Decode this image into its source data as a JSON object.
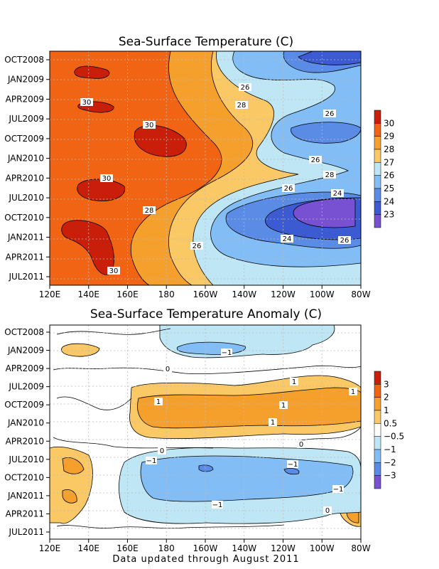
{
  "footer": "Data updated through August 2011",
  "colors": {
    "frame": "#000000",
    "grid": "#bbbbbb"
  },
  "chart_data": [
    {
      "type": "heatmap",
      "title": "Sea-Surface Temperature (C)",
      "x_ticks": [
        "120E",
        "140E",
        "160E",
        "180",
        "160W",
        "140W",
        "120W",
        "100W",
        "80W"
      ],
      "y_ticks": [
        "OCT2008",
        "JAN2009",
        "APR2009",
        "JUL2009",
        "OCT2009",
        "JAN2010",
        "APR2010",
        "JUL2010",
        "OCT2010",
        "JAN2011",
        "APR2011",
        "JUL2011"
      ],
      "colorbar": {
        "labels": [
          "30",
          "29",
          "28",
          "27",
          "26",
          "25",
          "24",
          "23"
        ],
        "colors": [
          "#c81e0a",
          "#f06414",
          "#f5a02d",
          "#fac864",
          "#bfe6f5",
          "#82bef5",
          "#5a8ce6",
          "#3c5ad2",
          "#7850d2"
        ]
      },
      "contour_labels": [
        "30",
        "30",
        "30",
        "30",
        "30",
        "28",
        "28",
        "28",
        "26",
        "26",
        "26",
        "26",
        "26",
        "26",
        "26",
        "24",
        "24"
      ]
    },
    {
      "type": "heatmap",
      "title": "Sea-Surface Temperature Anomaly (C)",
      "x_ticks": [
        "120E",
        "140E",
        "160E",
        "180",
        "160W",
        "140W",
        "120W",
        "100W",
        "80W"
      ],
      "y_ticks": [
        "OCT2008",
        "JAN2009",
        "APR2009",
        "JUL2009",
        "OCT2009",
        "JAN2010",
        "APR2010",
        "JUL2010",
        "OCT2010",
        "JAN2011",
        "APR2011",
        "JUL2011"
      ],
      "colorbar": {
        "labels": [
          "3",
          "2",
          "1",
          "0.5",
          "−0.5",
          "−1",
          "−2",
          "−3"
        ],
        "colors": [
          "#c81e0a",
          "#f06414",
          "#f5a02d",
          "#fac864",
          "#ffffff",
          "#bfe6f5",
          "#82bef5",
          "#5a8ce6",
          "#7850d2"
        ]
      },
      "contour_labels": [
        "−1",
        "0",
        "1",
        "1",
        "1",
        "1",
        "1",
        "0",
        "0",
        "−1",
        "−1",
        "−1",
        "−1",
        "0"
      ]
    }
  ]
}
